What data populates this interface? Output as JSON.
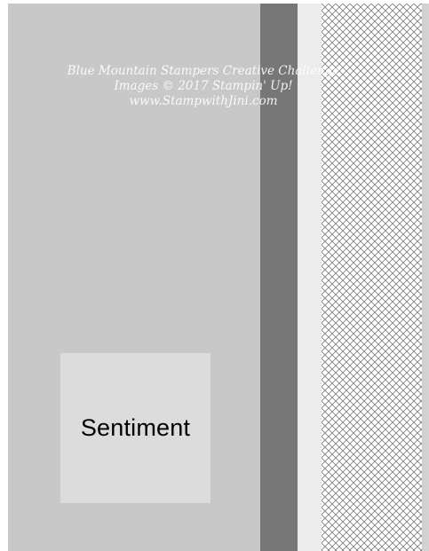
{
  "layout": {
    "sentiment": "Sentiment"
  },
  "watermark": {
    "line1": "Blue Mountain Stampers Creative Challenge",
    "line2": "Images © 2017 Stampin' Up!",
    "line3": "www.StampwithJini.com"
  },
  "colors": {
    "card_base": "#c8c8c8",
    "dark_strip": "#777777",
    "light_strip": "#ececec",
    "pattern_line": "#7a7a7a",
    "sentiment_box": "#dcdcdc"
  }
}
